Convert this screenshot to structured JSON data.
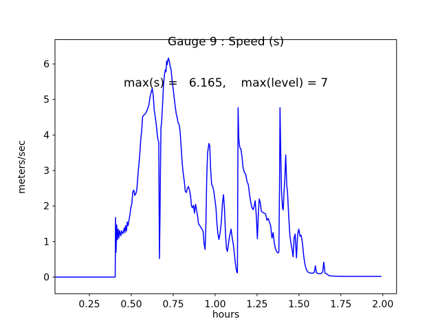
{
  "chart_data": {
    "type": "line",
    "title": "Gauge 9 : Speed (s)",
    "subtitle": "max(s) =   6.165,    max(level) = 7",
    "max_s": 6.165,
    "max_level": 7,
    "xlabel": "hours",
    "ylabel": "meters/sec",
    "line_color": "#0000ff",
    "axis_color": "#000000",
    "background": "#ffffff",
    "grid": false,
    "legend_position": "none",
    "xlim": [
      0.045,
      2.082
    ],
    "ylim": [
      -0.468,
      6.686
    ],
    "xticks": [
      0.25,
      0.5,
      0.75,
      1.0,
      1.25,
      1.5,
      1.75,
      2.0
    ],
    "xtick_labels": [
      "0.25",
      "0.50",
      "0.75",
      "1.00",
      "1.25",
      "1.50",
      "1.75",
      "2.00"
    ],
    "yticks": [
      0,
      1,
      2,
      3,
      4,
      5,
      6
    ],
    "ytick_labels": [
      "0",
      "1",
      "2",
      "3",
      "4",
      "5",
      "6"
    ],
    "series": [
      {
        "name": "speed",
        "points": [
          [
            0.049,
            0
          ],
          [
            0.15,
            0
          ],
          [
            0.25,
            0
          ],
          [
            0.35,
            0
          ],
          [
            0.404,
            0
          ],
          [
            0.406,
            1.68
          ],
          [
            0.409,
            0.7
          ],
          [
            0.413,
            1.47
          ],
          [
            0.417,
            1.05
          ],
          [
            0.421,
            1.35
          ],
          [
            0.426,
            1.1
          ],
          [
            0.43,
            1.31
          ],
          [
            0.438,
            1.16
          ],
          [
            0.442,
            1.3
          ],
          [
            0.45,
            1.22
          ],
          [
            0.458,
            1.38
          ],
          [
            0.462,
            1.25
          ],
          [
            0.466,
            1.45
          ],
          [
            0.471,
            1.3
          ],
          [
            0.476,
            1.55
          ],
          [
            0.481,
            1.45
          ],
          [
            0.486,
            1.6
          ],
          [
            0.492,
            1.75
          ],
          [
            0.497,
            1.95
          ],
          [
            0.503,
            2.05
          ],
          [
            0.509,
            2.4
          ],
          [
            0.515,
            2.45
          ],
          [
            0.521,
            2.3
          ],
          [
            0.527,
            2.35
          ],
          [
            0.533,
            2.45
          ],
          [
            0.54,
            2.9
          ],
          [
            0.546,
            3.2
          ],
          [
            0.551,
            3.5
          ],
          [
            0.557,
            3.9
          ],
          [
            0.562,
            4.11
          ],
          [
            0.567,
            4.5
          ],
          [
            0.572,
            4.55
          ],
          [
            0.58,
            4.58
          ],
          [
            0.588,
            4.63
          ],
          [
            0.596,
            4.72
          ],
          [
            0.605,
            4.85
          ],
          [
            0.613,
            5.1
          ],
          [
            0.619,
            5.21
          ],
          [
            0.625,
            5.31
          ],
          [
            0.631,
            5.1
          ],
          [
            0.637,
            4.7
          ],
          [
            0.643,
            4.5
          ],
          [
            0.649,
            4.3
          ],
          [
            0.655,
            4.0
          ],
          [
            0.66,
            3.85
          ],
          [
            0.664,
            3.8
          ],
          [
            0.666,
            2.0
          ],
          [
            0.668,
            0.52
          ],
          [
            0.671,
            1.6
          ],
          [
            0.674,
            3.0
          ],
          [
            0.677,
            4.2
          ],
          [
            0.681,
            4.37
          ],
          [
            0.687,
            4.9
          ],
          [
            0.692,
            5.4
          ],
          [
            0.698,
            5.7
          ],
          [
            0.703,
            5.84
          ],
          [
            0.707,
            5.78
          ],
          [
            0.711,
            6.08
          ],
          [
            0.714,
            5.98
          ],
          [
            0.718,
            6.1
          ],
          [
            0.721,
            6.165
          ],
          [
            0.727,
            6.08
          ],
          [
            0.731,
            5.95
          ],
          [
            0.737,
            5.85
          ],
          [
            0.744,
            5.52
          ],
          [
            0.752,
            5.21
          ],
          [
            0.76,
            4.88
          ],
          [
            0.768,
            4.6
          ],
          [
            0.774,
            4.48
          ],
          [
            0.779,
            4.35
          ],
          [
            0.785,
            4.3
          ],
          [
            0.791,
            4.1
          ],
          [
            0.797,
            3.7
          ],
          [
            0.803,
            3.24
          ],
          [
            0.809,
            2.95
          ],
          [
            0.816,
            2.7
          ],
          [
            0.822,
            2.42
          ],
          [
            0.828,
            2.38
          ],
          [
            0.835,
            2.5
          ],
          [
            0.841,
            2.55
          ],
          [
            0.847,
            2.45
          ],
          [
            0.853,
            2.3
          ],
          [
            0.859,
            2.0
          ],
          [
            0.865,
            1.95
          ],
          [
            0.871,
            2.02
          ],
          [
            0.877,
            1.8
          ],
          [
            0.883,
            2.05
          ],
          [
            0.889,
            1.9
          ],
          [
            0.895,
            1.73
          ],
          [
            0.901,
            1.5
          ],
          [
            0.908,
            1.45
          ],
          [
            0.915,
            1.4
          ],
          [
            0.921,
            1.35
          ],
          [
            0.928,
            1.3
          ],
          [
            0.934,
            0.95
          ],
          [
            0.94,
            0.78
          ],
          [
            0.945,
            1.5
          ],
          [
            0.95,
            2.8
          ],
          [
            0.955,
            3.5
          ],
          [
            0.959,
            3.63
          ],
          [
            0.963,
            3.76
          ],
          [
            0.968,
            3.7
          ],
          [
            0.973,
            3.05
          ],
          [
            0.979,
            2.62
          ],
          [
            0.985,
            2.55
          ],
          [
            0.991,
            2.45
          ],
          [
            0.998,
            2.2
          ],
          [
            1.005,
            1.95
          ],
          [
            1.011,
            1.5
          ],
          [
            1.017,
            1.2
          ],
          [
            1.023,
            1.06
          ],
          [
            1.03,
            1.25
          ],
          [
            1.037,
            1.55
          ],
          [
            1.044,
            2.1
          ],
          [
            1.05,
            2.32
          ],
          [
            1.056,
            1.9
          ],
          [
            1.062,
            1.2
          ],
          [
            1.068,
            0.8
          ],
          [
            1.073,
            0.72
          ],
          [
            1.08,
            0.95
          ],
          [
            1.088,
            1.2
          ],
          [
            1.095,
            1.35
          ],
          [
            1.102,
            1.1
          ],
          [
            1.109,
            0.9
          ],
          [
            1.116,
            0.6
          ],
          [
            1.123,
            0.3
          ],
          [
            1.129,
            0.15
          ],
          [
            1.133,
            0.12
          ],
          [
            1.135,
            2.5
          ],
          [
            1.137,
            4.77
          ],
          [
            1.141,
            3.9
          ],
          [
            1.147,
            3.65
          ],
          [
            1.154,
            3.6
          ],
          [
            1.16,
            3.4
          ],
          [
            1.166,
            3.1
          ],
          [
            1.174,
            2.95
          ],
          [
            1.182,
            2.9
          ],
          [
            1.19,
            2.7
          ],
          [
            1.198,
            2.6
          ],
          [
            1.206,
            2.3
          ],
          [
            1.213,
            2.1
          ],
          [
            1.22,
            1.95
          ],
          [
            1.227,
            1.9
          ],
          [
            1.233,
            2.0
          ],
          [
            1.239,
            2.15
          ],
          [
            1.246,
            1.7
          ],
          [
            1.252,
            1.08
          ],
          [
            1.258,
            1.8
          ],
          [
            1.263,
            2.2
          ],
          [
            1.269,
            2.1
          ],
          [
            1.276,
            1.85
          ],
          [
            1.284,
            1.82
          ],
          [
            1.293,
            1.8
          ],
          [
            1.301,
            1.78
          ],
          [
            1.309,
            1.6
          ],
          [
            1.316,
            1.65
          ],
          [
            1.324,
            1.55
          ],
          [
            1.331,
            1.45
          ],
          [
            1.339,
            1.1
          ],
          [
            1.346,
            1.25
          ],
          [
            1.353,
            0.95
          ],
          [
            1.36,
            0.8
          ],
          [
            1.367,
            0.72
          ],
          [
            1.373,
            0.68
          ],
          [
            1.38,
            0.7
          ],
          [
            1.384,
            2.5
          ],
          [
            1.387,
            4.77
          ],
          [
            1.391,
            3.6
          ],
          [
            1.396,
            2.4
          ],
          [
            1.402,
            1.95
          ],
          [
            1.406,
            1.89
          ],
          [
            1.411,
            2.4
          ],
          [
            1.416,
            2.8
          ],
          [
            1.421,
            3.44
          ],
          [
            1.427,
            2.6
          ],
          [
            1.432,
            2.37
          ],
          [
            1.439,
            1.7
          ],
          [
            1.446,
            1.16
          ],
          [
            1.452,
            0.96
          ],
          [
            1.458,
            0.8
          ],
          [
            1.465,
            0.57
          ],
          [
            1.471,
            1.1
          ],
          [
            1.477,
            1.21
          ],
          [
            1.485,
            0.54
          ],
          [
            1.492,
            1.2
          ],
          [
            1.499,
            1.35
          ],
          [
            1.506,
            1.15
          ],
          [
            1.513,
            1.18
          ],
          [
            1.521,
            0.95
          ],
          [
            1.528,
            0.6
          ],
          [
            1.536,
            0.35
          ],
          [
            1.545,
            0.2
          ],
          [
            1.556,
            0.13
          ],
          [
            1.57,
            0.11
          ],
          [
            1.584,
            0.11
          ],
          [
            1.592,
            0.14
          ],
          [
            1.598,
            0.32
          ],
          [
            1.604,
            0.12
          ],
          [
            1.615,
            0.1
          ],
          [
            1.632,
            0.1
          ],
          [
            1.641,
            0.14
          ],
          [
            1.648,
            0.42
          ],
          [
            1.655,
            0.12
          ],
          [
            1.668,
            0.08
          ],
          [
            1.68,
            0.04
          ],
          [
            1.7,
            0.03
          ],
          [
            1.75,
            0.02
          ],
          [
            1.85,
            0.02
          ],
          [
            1.99,
            0.02
          ]
        ]
      }
    ]
  }
}
